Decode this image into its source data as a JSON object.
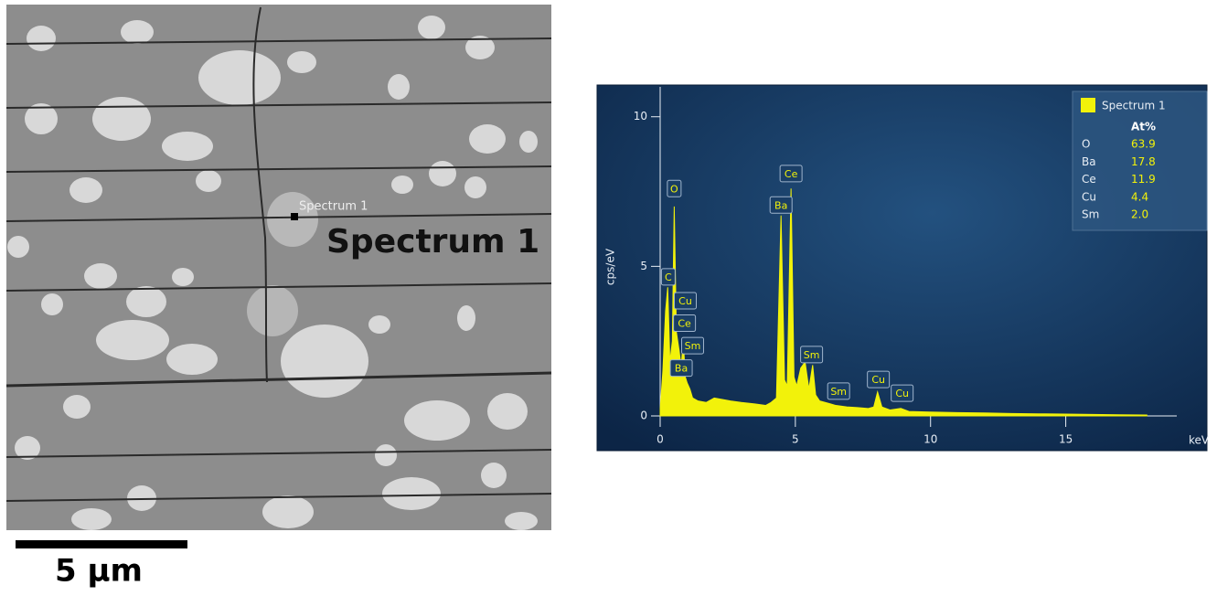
{
  "micrograph": {
    "marker_label": "Spectrum 1",
    "callout": "Spectrum 1",
    "scale_bar": "5 µm"
  },
  "chart_data": {
    "type": "area",
    "ylabel": "cps/eV",
    "xlabel": "keV",
    "xlim": [
      0,
      18.7
    ],
    "xticks": [
      0,
      5,
      10,
      15
    ],
    "ylim": [
      0,
      11
    ],
    "yticks": [
      0,
      5,
      10
    ],
    "series": [
      {
        "name": "Spectrum 1",
        "color": "#f2f20a",
        "x": [
          0,
          0.1,
          0.2,
          0.28,
          0.36,
          0.45,
          0.52,
          0.6,
          0.7,
          0.78,
          0.85,
          0.93,
          1.0,
          1.1,
          1.2,
          1.4,
          1.7,
          2.0,
          2.3,
          2.6,
          3.0,
          3.5,
          3.9,
          4.1,
          4.3,
          4.47,
          4.6,
          4.7,
          4.84,
          4.95,
          5.05,
          5.2,
          5.36,
          5.5,
          5.64,
          5.75,
          5.9,
          6.1,
          6.3,
          6.5,
          6.9,
          7.3,
          7.7,
          7.9,
          8.04,
          8.2,
          8.5,
          8.9,
          9.2,
          10,
          11,
          12,
          13,
          14,
          15,
          16,
          17,
          18
        ],
        "values": [
          0.2,
          1.5,
          3.5,
          4.3,
          1.8,
          2.5,
          7.0,
          2.8,
          2.2,
          1.6,
          2.6,
          1.3,
          1.1,
          0.9,
          0.6,
          0.5,
          0.45,
          0.6,
          0.55,
          0.5,
          0.45,
          0.4,
          0.35,
          0.45,
          0.6,
          6.7,
          1.2,
          1.0,
          7.6,
          1.3,
          1.0,
          1.6,
          1.8,
          0.9,
          1.7,
          0.7,
          0.5,
          0.45,
          0.4,
          0.35,
          0.3,
          0.28,
          0.25,
          0.3,
          0.8,
          0.3,
          0.2,
          0.25,
          0.15,
          0.13,
          0.11,
          0.1,
          0.08,
          0.07,
          0.06,
          0.05,
          0.04,
          0.03
        ]
      }
    ],
    "peak_labels": [
      {
        "text": "O",
        "x": 0.52,
        "y": 7.6
      },
      {
        "text": "C",
        "x": 0.3,
        "y": 4.65
      },
      {
        "text": "Cu",
        "x": 0.93,
        "y": 3.85
      },
      {
        "text": "Ce",
        "x": 0.9,
        "y": 3.1
      },
      {
        "text": "Sm",
        "x": 1.2,
        "y": 2.35
      },
      {
        "text": "Ba",
        "x": 0.78,
        "y": 1.6
      },
      {
        "text": "Ba",
        "x": 4.47,
        "y": 7.05
      },
      {
        "text": "Ce",
        "x": 4.84,
        "y": 8.1
      },
      {
        "text": "Sm",
        "x": 5.6,
        "y": 2.05
      },
      {
        "text": "Sm",
        "x": 6.6,
        "y": 0.83
      },
      {
        "text": "Cu",
        "x": 8.07,
        "y": 1.22
      },
      {
        "text": "Cu",
        "x": 8.95,
        "y": 0.76
      }
    ],
    "legend_table": {
      "header": "At%",
      "elements": [
        "O",
        "Ba",
        "Ce",
        "Cu",
        "Sm"
      ],
      "values": [
        63.9,
        17.8,
        11.9,
        4.4,
        2.0
      ],
      "value_labels": [
        "63.9",
        "17.8",
        "11.9",
        "4.4",
        "2.0"
      ]
    }
  }
}
